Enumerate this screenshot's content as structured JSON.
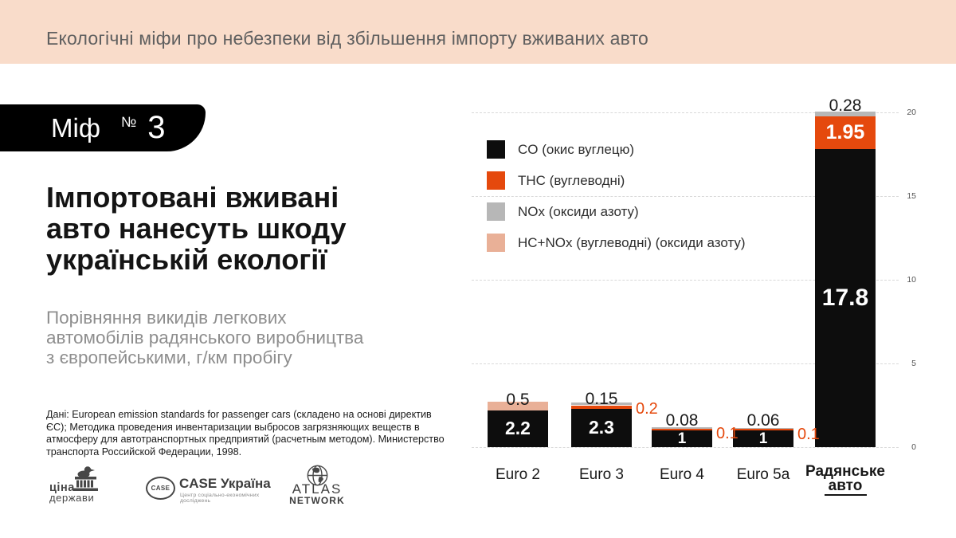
{
  "header": {
    "title": "Екологічні міфи про небезпеки від збільшення імпорту вживаних авто"
  },
  "badge": {
    "word": "Міф",
    "numero": "№",
    "number": "3"
  },
  "intro": {
    "heading": "Імпортовані вживані\nавто нанесуть шкоду\nукраїнській екології",
    "subtitle": "Порівняння викидів легкових\nавтомобілів радянського виробництва\nз європейськими, г/км пробігу",
    "source": "Дані: European emission standards for passenger cars (складено на основі директив\nЄС); Методика проведения инвентаризации выбросов загрязняющих веществ в\nатмосферу для автотранспортных предприятий (расчетным методом). Министерство\nтранспорта Российской Федерации, 1998."
  },
  "logos": {
    "tsina": {
      "line1": "ціна",
      "line2": "держави"
    },
    "case": {
      "badge": "CASE",
      "title": "CASE Україна",
      "subtitle": "Центр соціально-економічних досліджень"
    },
    "atlas": {
      "line1": "ATLAS",
      "line2": "NETWORK"
    }
  },
  "chart_data": {
    "type": "bar",
    "stacked": true,
    "title": "Порівняння викидів легкових автомобілів радянського виробництва з європейськими, г/км пробігу",
    "categories": [
      "Euro 2",
      "Euro 3",
      "Euro 4",
      "Euro 5a",
      "Радянське авто"
    ],
    "series": [
      {
        "name": "CO (окис вуглецю)",
        "color": "#0d0d0d",
        "values": [
          2.2,
          2.3,
          1,
          1,
          17.8
        ]
      },
      {
        "name": "THC (вуглеводні)",
        "color": "#e5490d",
        "values": [
          0,
          0.2,
          0.1,
          0.1,
          1.95
        ]
      },
      {
        "name": "NOx (оксиди азоту)",
        "color": "#b7b7b7",
        "values": [
          0,
          0.15,
          0.08,
          0.06,
          0.28
        ]
      },
      {
        "name": "HC+NOx (вуглеводні) (оксиди азоту)",
        "color": "#e9b097",
        "values": [
          0.5,
          0,
          0,
          0,
          0
        ]
      }
    ],
    "y_ticks": [
      0,
      5,
      10,
      15,
      20
    ],
    "ylim": [
      0,
      20
    ],
    "grid": "dashed-horizontal",
    "legend_position": "top-left",
    "bar_labels": [
      {
        "category_index": 0,
        "text": "2.2",
        "placement": "inside_co"
      },
      {
        "category_index": 0,
        "text": "0.5",
        "placement": "above"
      },
      {
        "category_index": 1,
        "text": "2.3",
        "placement": "inside_co"
      },
      {
        "category_index": 1,
        "text": "0.15",
        "placement": "above"
      },
      {
        "category_index": 1,
        "text": "0.2",
        "placement": "right_orange"
      },
      {
        "category_index": 2,
        "text": "1",
        "placement": "inside_co"
      },
      {
        "category_index": 2,
        "text": "0.08",
        "placement": "above"
      },
      {
        "category_index": 2,
        "text": "0.1",
        "placement": "right_orange"
      },
      {
        "category_index": 3,
        "text": "1",
        "placement": "inside_co"
      },
      {
        "category_index": 3,
        "text": "0.06",
        "placement": "above"
      },
      {
        "category_index": 3,
        "text": "0.1",
        "placement": "right_orange"
      },
      {
        "category_index": 4,
        "text": "17.8",
        "placement": "inside_co"
      },
      {
        "category_index": 4,
        "text": "1.95",
        "placement": "inside_thc"
      },
      {
        "category_index": 4,
        "text": "0.28",
        "placement": "above"
      }
    ]
  },
  "colors": {
    "header_bg": "#f9dcca",
    "badge_bg": "#000000",
    "accent_orange": "#e5490d",
    "nox_gray": "#b7b7b7",
    "hcnox_peach": "#e9b097"
  }
}
